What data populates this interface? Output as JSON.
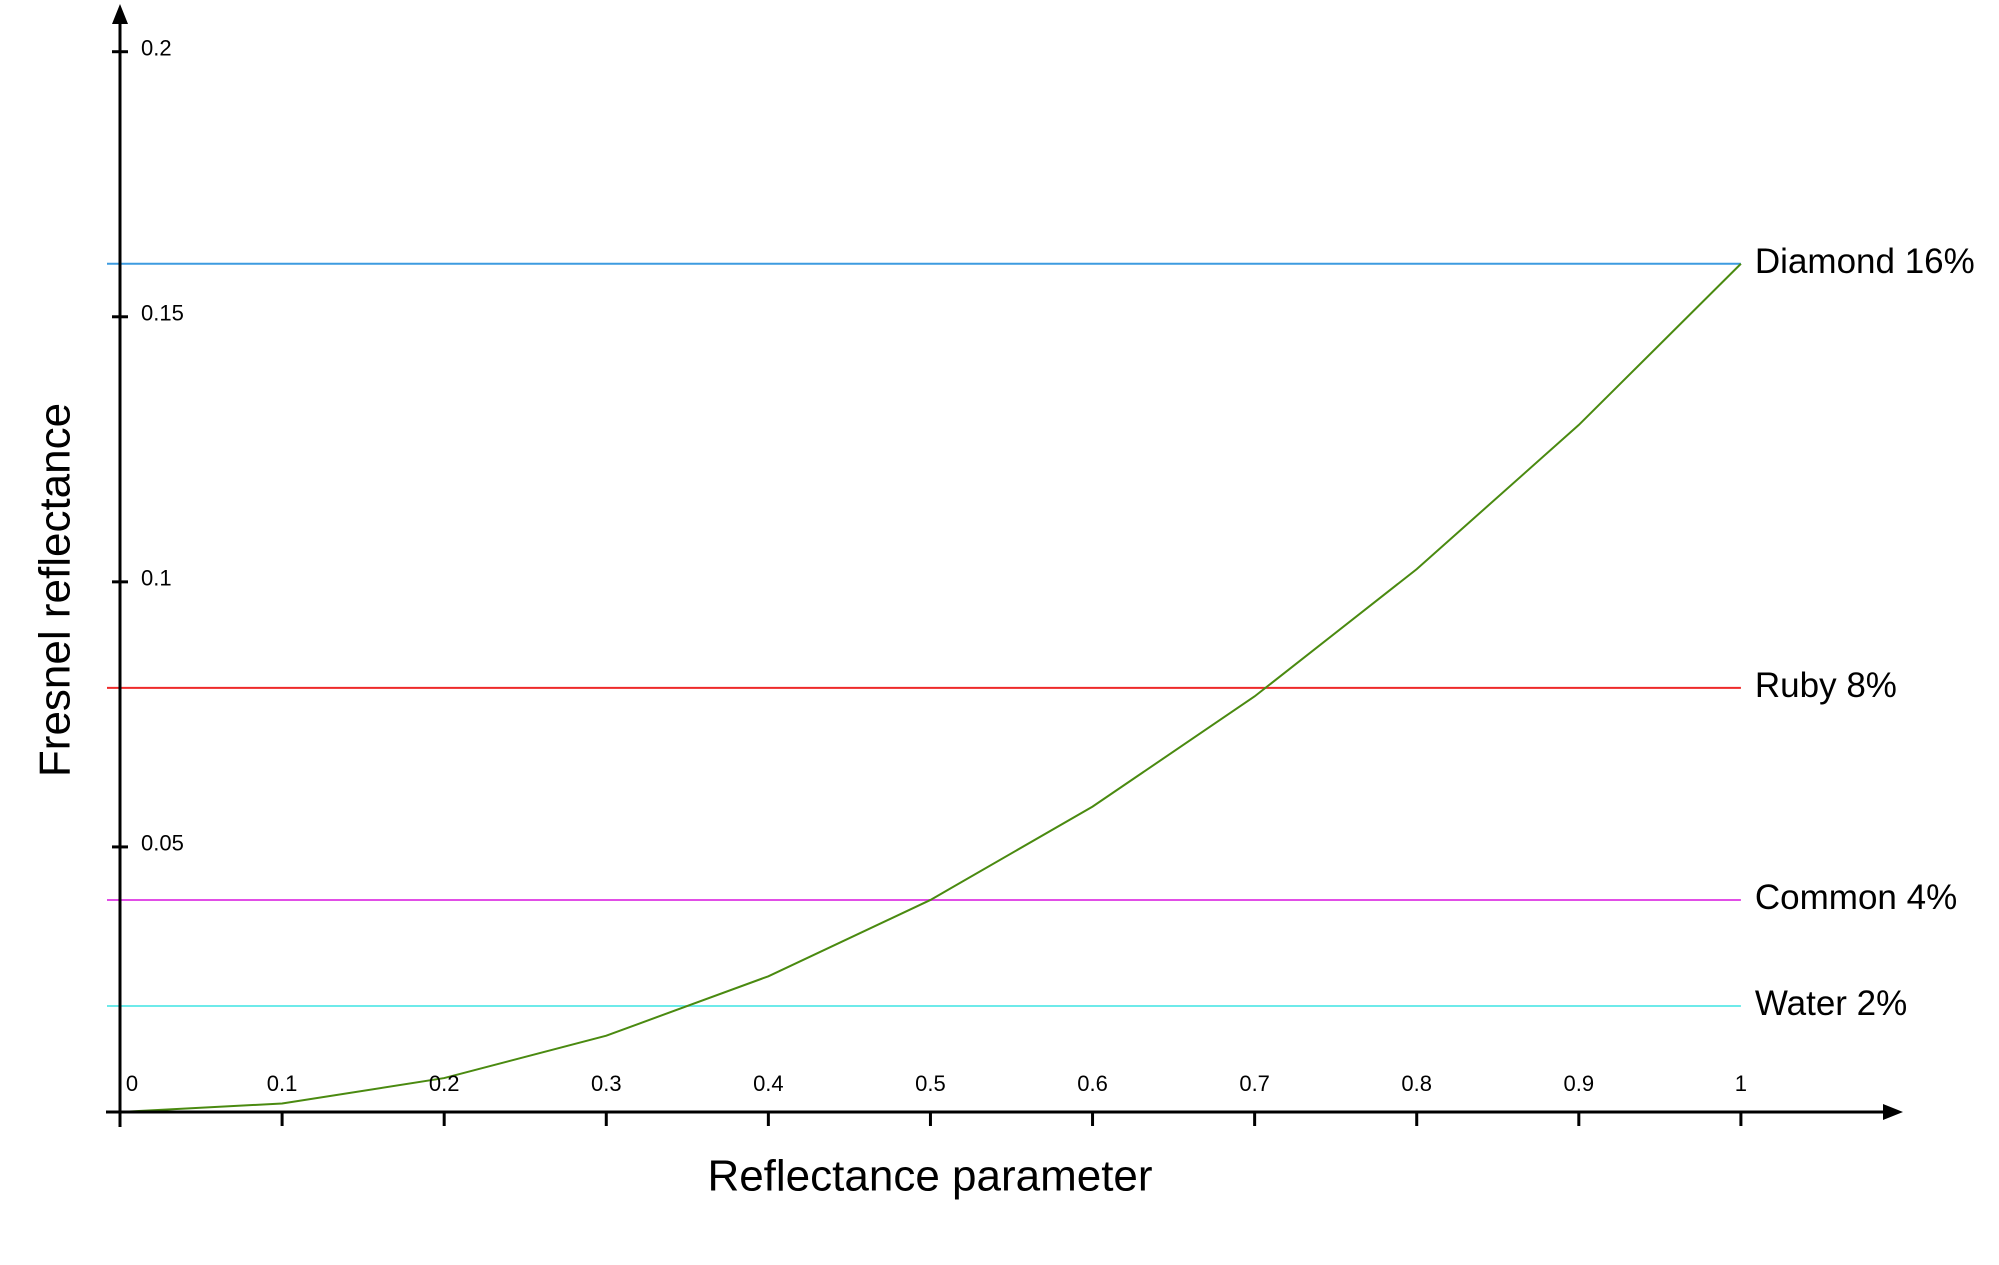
{
  "chart_data": {
    "type": "line",
    "x_label": "Reflectance parameter",
    "y_label": "Fresnel reflectance",
    "x": [
      0,
      0.1,
      0.2,
      0.3,
      0.4,
      0.5,
      0.6,
      0.7,
      0.8,
      0.9,
      1
    ],
    "series": [
      {
        "color": "#4a8a10",
        "values": [
          0,
          0.0016,
          0.0064,
          0.0144,
          0.0256,
          0.04,
          0.0576,
          0.0784,
          0.1024,
          0.1296,
          0.16
        ]
      }
    ],
    "reference_lines": [
      {
        "label": "Diamond 16%",
        "value": 0.16,
        "color": "#3d9be0"
      },
      {
        "label": "Ruby 8%",
        "value": 0.08,
        "color": "#ee2a2a"
      },
      {
        "label": "Common 4%",
        "value": 0.04,
        "color": "#e14ee6"
      },
      {
        "label": "Water 2%",
        "value": 0.02,
        "color": "#6eeaea"
      }
    ],
    "xlim": [
      0,
      1.1
    ],
    "ylim": [
      0,
      0.209
    ],
    "xticks": [
      0,
      0.1,
      0.2,
      0.3,
      0.4,
      0.5,
      0.6,
      0.7,
      0.8,
      0.9,
      1
    ],
    "yticks": [
      0.05,
      0.1,
      0.15,
      0.2
    ]
  }
}
